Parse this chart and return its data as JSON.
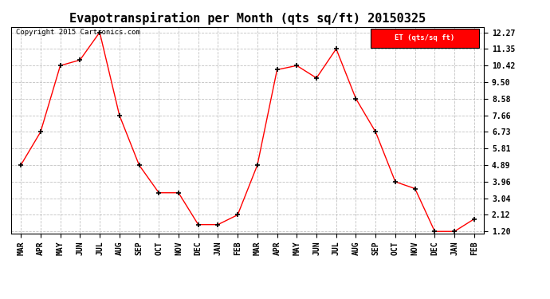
{
  "title": "Evapotranspiration per Month (qts sq/ft) 20150325",
  "copyright": "Copyright 2015 Cartronics.com",
  "legend_label": "ET (qts/sq ft)",
  "x_labels": [
    "MAR",
    "APR",
    "MAY",
    "JUN",
    "JUL",
    "AUG",
    "SEP",
    "OCT",
    "NOV",
    "DEC",
    "JAN",
    "FEB",
    "MAR",
    "APR",
    "MAY",
    "JUN",
    "JUL",
    "AUG",
    "SEP",
    "OCT",
    "NOV",
    "DEC",
    "JAN",
    "FEB"
  ],
  "y_values": [
    4.89,
    6.73,
    10.42,
    10.73,
    12.27,
    7.66,
    4.89,
    3.35,
    3.35,
    1.58,
    1.58,
    2.12,
    4.89,
    10.19,
    10.42,
    9.73,
    11.35,
    8.58,
    6.73,
    3.96,
    3.58,
    1.2,
    1.2,
    1.89
  ],
  "ylim_min": 1.2,
  "ylim_max": 12.27,
  "yticks": [
    1.2,
    2.12,
    3.04,
    3.96,
    4.89,
    5.81,
    6.73,
    7.66,
    8.58,
    9.5,
    10.42,
    11.35,
    12.27
  ],
  "line_color": "red",
  "marker": "+",
  "marker_color": "black",
  "bg_color": "#ffffff",
  "grid_color": "#bbbbbb",
  "legend_bg": "red",
  "legend_text_color": "white",
  "title_fontsize": 11,
  "tick_fontsize": 7,
  "copyright_fontsize": 6.5
}
